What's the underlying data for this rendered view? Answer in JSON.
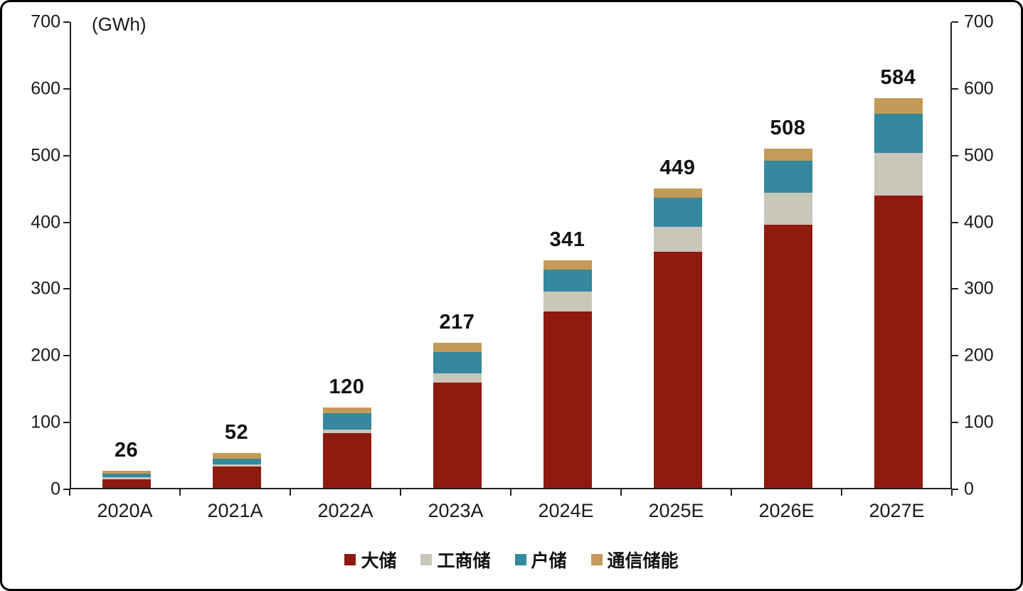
{
  "chart_data": {
    "type": "bar",
    "subtype": "stacked",
    "title": "",
    "unit_label": "(GWh)",
    "categories": [
      "2020A",
      "2021A",
      "2022A",
      "2023A",
      "2024E",
      "2025E",
      "2026E",
      "2027E"
    ],
    "totals": [
      26,
      52,
      120,
      217,
      341,
      449,
      508,
      584
    ],
    "series": [
      {
        "name": "大储",
        "color": "#8E1A10",
        "values": [
          13,
          32,
          82,
          158,
          264,
          354,
          394,
          438
        ]
      },
      {
        "name": "工商储",
        "color": "#C9C6BA",
        "values": [
          3,
          3,
          5,
          14,
          30,
          37,
          48,
          64
        ]
      },
      {
        "name": "户储",
        "color": "#35889E",
        "values": [
          5,
          9,
          25,
          31,
          33,
          44,
          48,
          58
        ]
      },
      {
        "name": "通信储能",
        "color": "#C49A58",
        "values": [
          5,
          8,
          8,
          14,
          14,
          14,
          18,
          24
        ]
      }
    ],
    "ylim": [
      0,
      700
    ],
    "yticks": [
      0,
      100,
      200,
      300,
      400,
      500,
      600,
      700
    ],
    "grid": false,
    "legend_position": "bottom",
    "axis_color": "#222222",
    "label_color": "#1a1a1a"
  }
}
